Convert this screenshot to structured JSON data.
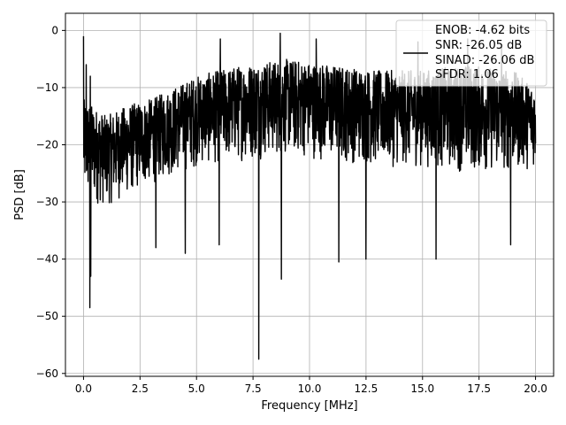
{
  "chart_data": {
    "type": "line",
    "title": "",
    "xlabel": "Frequency [MHz]",
    "ylabel": "PSD [dB]",
    "xlim": [
      -0.8,
      20.8
    ],
    "ylim": [
      -60.5,
      3
    ],
    "xticks": [
      0.0,
      2.5,
      5.0,
      7.5,
      10.0,
      12.5,
      15.0,
      17.5,
      20.0
    ],
    "xtick_labels": [
      "0.0",
      "2.5",
      "5.0",
      "7.5",
      "10.0",
      "12.5",
      "15.0",
      "17.5",
      "20.0"
    ],
    "yticks": [
      0,
      -10,
      -20,
      -30,
      -40,
      -50,
      -60
    ],
    "ytick_labels": [
      "0",
      "−10",
      "−20",
      "−30",
      "−40",
      "−50",
      "−60"
    ],
    "grid": true,
    "legend_position": "top-right",
    "line_color": "#000000",
    "legend": {
      "lines": [
        "ENOB: -4.62 bits",
        "SNR: -26.05 dB",
        "SINAD: -26.06 dB",
        "SFDR: 1.06"
      ]
    },
    "series": [
      {
        "x_range": [
          0.0,
          20.0
        ],
        "points": 2000,
        "envelope_upper": [
          [
            0,
            -12
          ],
          [
            1,
            -15
          ],
          [
            2,
            -13
          ],
          [
            3,
            -12
          ],
          [
            5,
            -8
          ],
          [
            7,
            -6
          ],
          [
            9,
            -5
          ],
          [
            11,
            -6
          ],
          [
            13,
            -7
          ],
          [
            15,
            -7
          ],
          [
            17,
            -6
          ],
          [
            19,
            -7
          ],
          [
            20,
            -10
          ]
        ],
        "envelope_lower": [
          [
            0,
            -30
          ],
          [
            1,
            -31
          ],
          [
            2,
            -29
          ],
          [
            3,
            -27
          ],
          [
            5,
            -24
          ],
          [
            7,
            -23
          ],
          [
            9,
            -22
          ],
          [
            11,
            -23
          ],
          [
            13,
            -24
          ],
          [
            15,
            -24
          ],
          [
            17,
            -25
          ],
          [
            19,
            -25
          ],
          [
            20,
            -24
          ]
        ],
        "peaks": [
          [
            0.0,
            -1
          ],
          [
            0.12,
            -6
          ],
          [
            0.3,
            -8
          ],
          [
            6.05,
            -1.5
          ],
          [
            8.7,
            -0.5
          ],
          [
            10.3,
            -1.5
          ],
          [
            14.8,
            -2
          ],
          [
            17.0,
            -1.5
          ],
          [
            18.5,
            -3
          ]
        ],
        "dips": [
          [
            0.28,
            -48.5
          ],
          [
            0.32,
            -43
          ],
          [
            3.2,
            -38
          ],
          [
            4.5,
            -39
          ],
          [
            6.0,
            -37.5
          ],
          [
            7.75,
            -57.5
          ],
          [
            8.75,
            -43.5
          ],
          [
            11.3,
            -40.5
          ],
          [
            12.5,
            -40
          ],
          [
            15.6,
            -40
          ],
          [
            18.9,
            -37.5
          ]
        ]
      }
    ]
  }
}
